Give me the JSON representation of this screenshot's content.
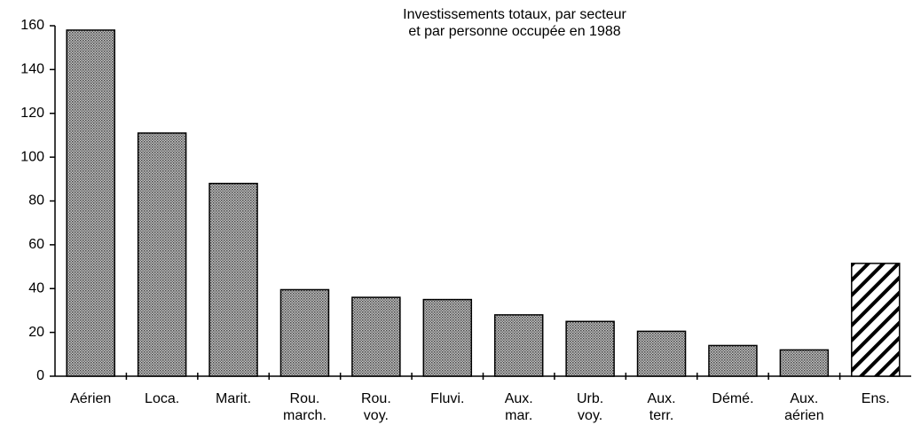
{
  "chart_data": {
    "type": "bar",
    "title": "Investissements totaux, par secteur\net par personne occupée en 1988",
    "categories": [
      "Aérien",
      "Loca.",
      "Marit.",
      "Rou.\nmarch.",
      "Rou.\nvoy.",
      "Fluvi.",
      "Aux.\nmar.",
      "Urb.\nvoy.",
      "Aux.\nterr.",
      "Démé.",
      "Aux.\naérien",
      "Ens."
    ],
    "values": [
      158,
      111,
      88,
      39.5,
      36,
      35,
      28,
      25,
      20.5,
      14,
      12,
      51.5
    ],
    "patterns": [
      "dots",
      "dots",
      "dots",
      "dots",
      "dots",
      "dots",
      "dots",
      "dots",
      "dots",
      "dots",
      "dots",
      "hatch"
    ],
    "ylim": [
      0,
      160
    ],
    "yticks": [
      0,
      20,
      40,
      60,
      80,
      100,
      120,
      140,
      160
    ],
    "grid": false
  }
}
